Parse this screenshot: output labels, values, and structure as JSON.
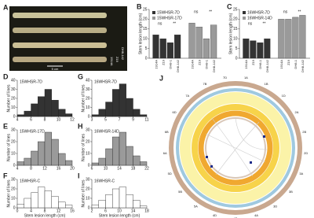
{
  "image_panel": {
    "panel": "A",
    "labels": [
      "1914A",
      "Z19",
      "DH8-142"
    ],
    "scale": "5 cm"
  },
  "chart_data": [
    {
      "type": "grouped_bar",
      "panel": "B",
      "y_label": "Stem lesion length (cm)",
      "categories": [
        "1914A",
        "Z19",
        "DH8-1",
        "DH8-142"
      ],
      "series": [
        {
          "name": "15WHSR-7D",
          "color": "#333333",
          "values": [
            12,
            10,
            8,
            12
          ]
        },
        {
          "name": "15WHSR-17D",
          "color": "#9a9a9a",
          "values": [
            18,
            16,
            10,
            17
          ]
        }
      ],
      "annotations": [
        "ns",
        "**",
        "ns",
        "**"
      ],
      "ylim": [
        0,
        25
      ],
      "yticks": [
        0,
        5,
        10,
        15,
        20,
        25
      ]
    },
    {
      "type": "grouped_bar",
      "panel": "C",
      "y_label": "Stem lesion length (cm)",
      "categories": [
        "1914A",
        "Z19",
        "DH8-1",
        "DH8-142"
      ],
      "series": [
        {
          "name": "16WHSR-7D",
          "color": "#333333",
          "values": [
            10,
            9,
            8,
            10
          ]
        },
        {
          "name": "16WHSR-14D",
          "color": "#9a9a9a",
          "values": [
            20,
            20,
            21,
            22
          ]
        }
      ],
      "annotations": [
        "ns",
        "**",
        "ns",
        "**"
      ],
      "ylim": [
        0,
        25
      ],
      "yticks": [
        0,
        5,
        10,
        15,
        20,
        25
      ]
    },
    {
      "type": "histogram",
      "panel": "D",
      "title": "15WHSR-7D",
      "y_label": "Number of lines",
      "color": "#333333",
      "bins": [
        4,
        5,
        6,
        7,
        8,
        9,
        10,
        11,
        12
      ],
      "values": [
        2,
        6,
        14,
        22,
        30,
        18,
        8,
        3
      ],
      "xlim": [
        4,
        12
      ],
      "xticks": [
        4,
        6,
        8,
        10,
        12
      ],
      "ylim": [
        0,
        40
      ],
      "yticks": [
        0,
        10,
        20,
        30,
        40
      ]
    },
    {
      "type": "histogram",
      "panel": "E",
      "title": "15WHSR-17D",
      "y_label": "Number of lines",
      "color": "#9a9a9a",
      "bins": [
        4,
        6,
        8,
        10,
        12,
        14,
        16,
        18,
        20
      ],
      "values": [
        3,
        6,
        12,
        20,
        28,
        22,
        10,
        4
      ],
      "xlim": [
        4,
        20
      ],
      "xticks": [
        4,
        8,
        12,
        16,
        20
      ],
      "ylim": [
        0,
        30
      ],
      "yticks": [
        0,
        10,
        20,
        30
      ]
    },
    {
      "type": "histogram",
      "panel": "F",
      "title": "15WHSR-C",
      "y_label": "Number of lines",
      "x_label": "Stem lesion length (cm)",
      "color": "#ffffff",
      "bins": [
        0,
        2,
        4,
        6,
        8,
        10,
        12,
        14,
        16
      ],
      "values": [
        4,
        10,
        16,
        22,
        18,
        12,
        6,
        3
      ],
      "xlim": [
        0,
        16
      ],
      "xticks": [
        0,
        4,
        8,
        12,
        16
      ],
      "ylim": [
        0,
        30
      ],
      "yticks": [
        0,
        10,
        20,
        30
      ]
    },
    {
      "type": "histogram",
      "panel": "G",
      "title": "16WHSR-7D",
      "y_label": "Number of lines",
      "color": "#333333",
      "bins": [
        3,
        4,
        5,
        6,
        7,
        8,
        9,
        10,
        11
      ],
      "values": [
        2,
        8,
        16,
        30,
        36,
        20,
        8,
        2
      ],
      "xlim": [
        3,
        11
      ],
      "xticks": [
        3,
        5,
        7,
        9,
        11
      ],
      "ylim": [
        0,
        40
      ],
      "yticks": [
        0,
        10,
        20,
        30,
        40
      ]
    },
    {
      "type": "histogram",
      "panel": "H",
      "title": "16WHSR-14D",
      "y_label": "Number of lines",
      "color": "#9a9a9a",
      "bins": [
        6,
        8,
        10,
        12,
        14,
        16,
        18,
        20,
        22
      ],
      "values": [
        2,
        6,
        14,
        24,
        28,
        16,
        8,
        3
      ],
      "xlim": [
        6,
        22
      ],
      "xticks": [
        6,
        10,
        14,
        18,
        22
      ],
      "ylim": [
        0,
        30
      ],
      "yticks": [
        0,
        10,
        20,
        30
      ]
    },
    {
      "type": "histogram",
      "panel": "I",
      "title": "16WHSR-C",
      "y_label": "Number of lines",
      "x_label": "Stem lesion length (cm)",
      "color": "#ffffff",
      "bins": [
        2,
        4,
        6,
        8,
        10,
        12,
        14,
        16,
        18
      ],
      "values": [
        3,
        8,
        14,
        20,
        22,
        14,
        8,
        2
      ],
      "xlim": [
        2,
        18
      ],
      "xticks": [
        2,
        6,
        10,
        14,
        18
      ],
      "ylim": [
        0,
        30
      ],
      "yticks": [
        0,
        10,
        20,
        30
      ]
    }
  ],
  "circos": {
    "panel": "J",
    "chromosomes": [
      "1A",
      "1B",
      "1D",
      "2A",
      "2B",
      "2D",
      "3A",
      "3B",
      "3D",
      "4A",
      "4B",
      "4D",
      "5A",
      "5B",
      "5D",
      "6A",
      "6B",
      "6D",
      "7A",
      "7B",
      "7D"
    ]
  }
}
